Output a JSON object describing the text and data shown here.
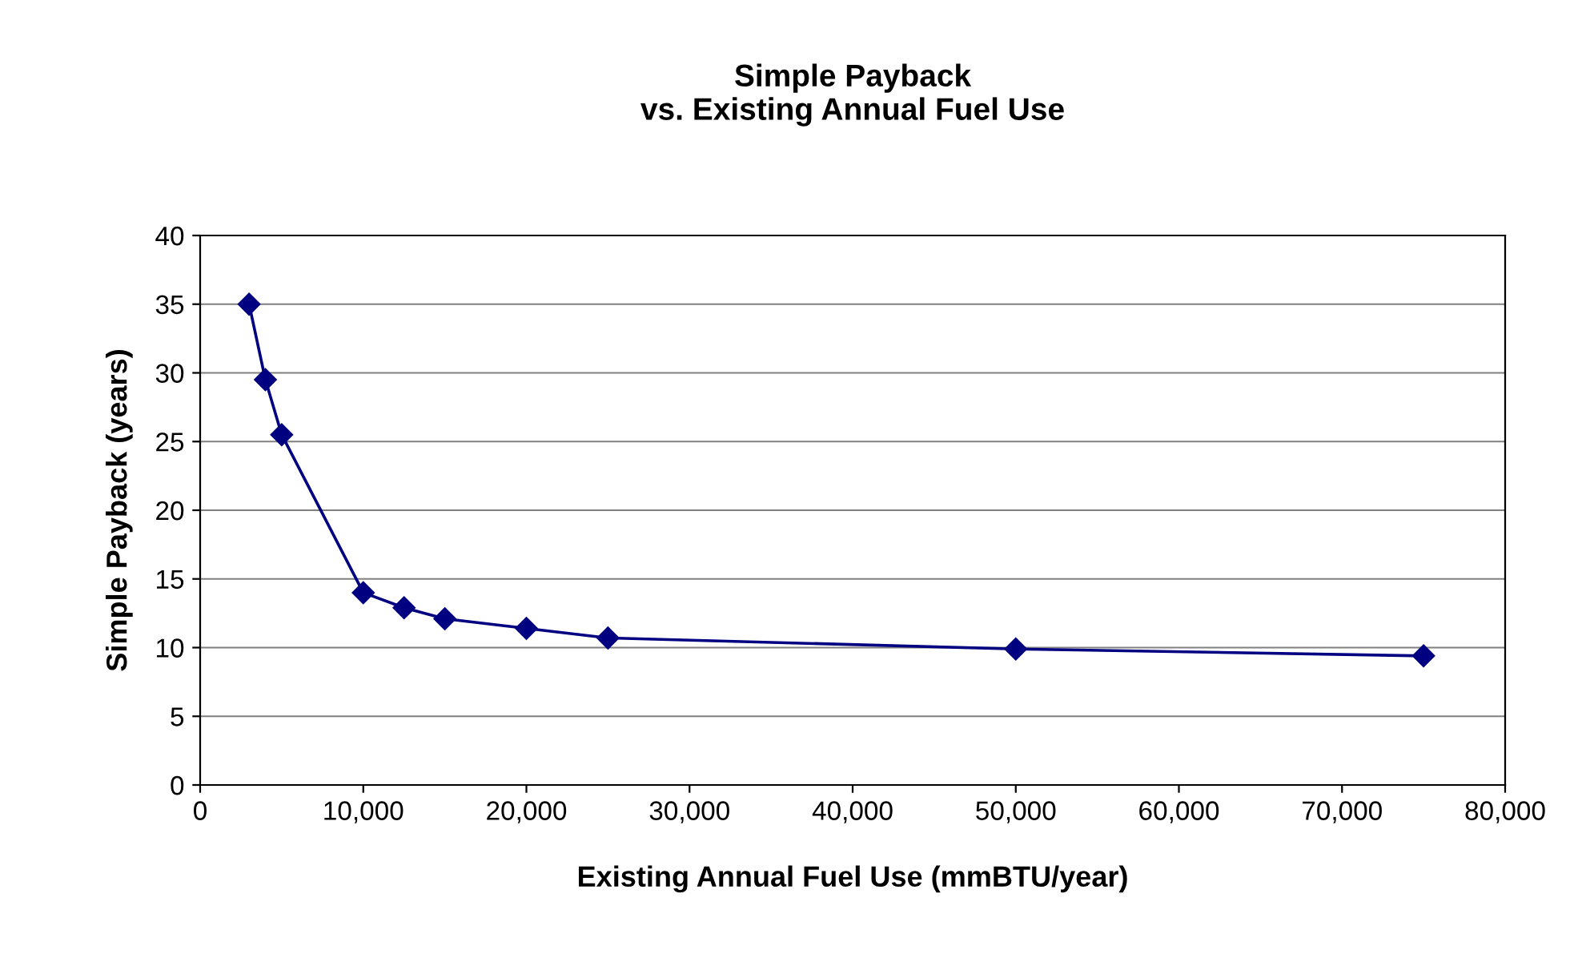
{
  "chart_data": {
    "type": "line",
    "title": "Simple Payback\nvs. Existing Annual Fuel Use",
    "xlabel": "Existing Annual Fuel Use (mmBTU/year)",
    "ylabel": "Simple Payback (years)",
    "x": [
      3000,
      4000,
      5000,
      10000,
      12500,
      15000,
      20000,
      25000,
      50000,
      75000
    ],
    "series": [
      {
        "color": "#000080",
        "values": [
          35,
          29.5,
          25.5,
          14,
          12.9,
          12.1,
          11.4,
          10.7,
          9.9,
          9.4
        ]
      }
    ],
    "xlim": [
      0,
      80000
    ],
    "xticks": [
      0,
      {
        "value": 10000,
        "label": "10,000"
      },
      {
        "value": 20000,
        "label": "20,000"
      },
      {
        "value": 30000,
        "label": "30,000"
      },
      {
        "value": 40000,
        "label": "40,000"
      },
      {
        "value": 50000,
        "label": "50,000"
      },
      {
        "value": 60000,
        "label": "60,000"
      },
      {
        "value": 70000,
        "label": "70,000"
      },
      {
        "value": 80000,
        "label": "80,000"
      }
    ],
    "ylim": [
      0,
      40
    ],
    "yticks": [
      0,
      5,
      10,
      15,
      20,
      25,
      30,
      35,
      40
    ],
    "grid": "y",
    "marker": "diamond",
    "line_style": "solid",
    "legend": false
  }
}
